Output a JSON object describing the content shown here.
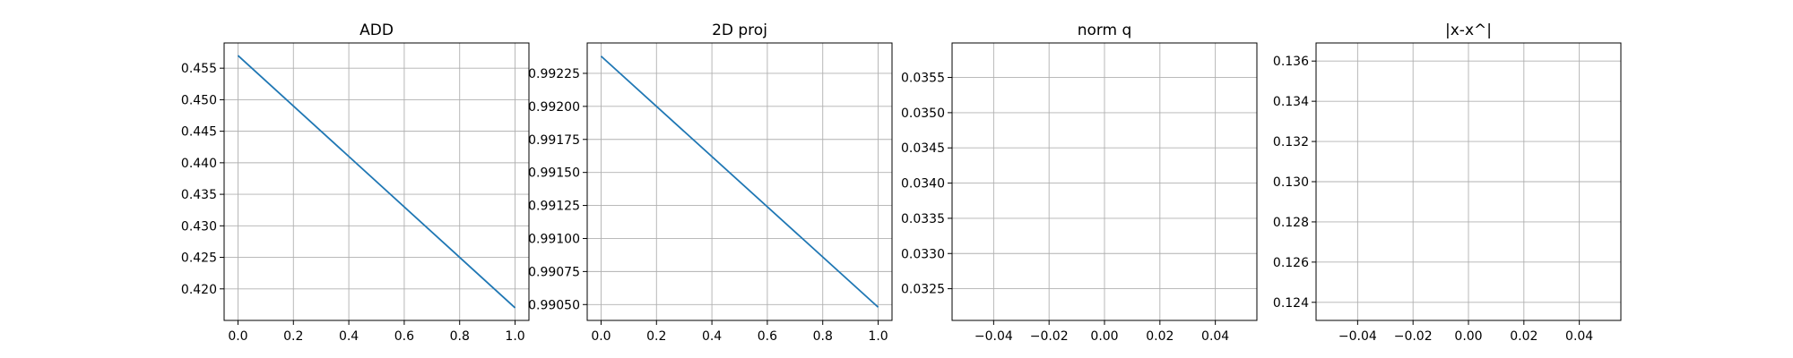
{
  "chart_data": [
    {
      "type": "line",
      "title": "ADD",
      "xlabel": "",
      "ylabel": "",
      "xlim": [
        -0.05,
        1.05
      ],
      "ylim": [
        0.415,
        0.459
      ],
      "xticks": [
        0.0,
        0.2,
        0.4,
        0.6,
        0.8,
        1.0
      ],
      "xtick_labels": [
        "0.0",
        "0.2",
        "0.4",
        "0.6",
        "0.8",
        "1.0"
      ],
      "yticks": [
        0.42,
        0.425,
        0.43,
        0.435,
        0.44,
        0.445,
        0.45,
        0.455
      ],
      "ytick_labels": [
        "0.420",
        "0.425",
        "0.430",
        "0.435",
        "0.440",
        "0.445",
        "0.450",
        "0.455"
      ],
      "grid": true,
      "color": "#1f77b4",
      "series": [
        {
          "x": [
            0.0,
            1.0
          ],
          "y": [
            0.457,
            0.417
          ]
        }
      ]
    },
    {
      "type": "line",
      "title": "2D proj",
      "xlabel": "",
      "ylabel": "",
      "xlim": [
        -0.05,
        1.05
      ],
      "ylim": [
        0.99038,
        0.99248
      ],
      "xticks": [
        0.0,
        0.2,
        0.4,
        0.6,
        0.8,
        1.0
      ],
      "xtick_labels": [
        "0.0",
        "0.2",
        "0.4",
        "0.6",
        "0.8",
        "1.0"
      ],
      "yticks": [
        0.9905,
        0.99075,
        0.991,
        0.99125,
        0.9915,
        0.99175,
        0.992,
        0.99225
      ],
      "ytick_labels": [
        "0.99050",
        "0.99075",
        "0.99100",
        "0.99125",
        "0.99150",
        "0.99175",
        "0.99200",
        "0.99225"
      ],
      "grid": true,
      "color": "#1f77b4",
      "series": [
        {
          "x": [
            0.0,
            1.0
          ],
          "y": [
            0.99238,
            0.99048
          ]
        }
      ]
    },
    {
      "type": "line",
      "title": "norm q",
      "xlabel": "",
      "ylabel": "",
      "xlim": [
        -0.055,
        0.055
      ],
      "ylim": [
        0.03205,
        0.03599
      ],
      "xticks": [
        -0.04,
        -0.02,
        0.0,
        0.02,
        0.04
      ],
      "xtick_labels": [
        "−0.04",
        "−0.02",
        "0.00",
        "0.02",
        "0.04"
      ],
      "yticks": [
        0.0325,
        0.033,
        0.0335,
        0.034,
        0.0345,
        0.035,
        0.0355
      ],
      "ytick_labels": [
        "0.0325",
        "0.0330",
        "0.0335",
        "0.0340",
        "0.0345",
        "0.0350",
        "0.0355"
      ],
      "grid": true,
      "color": "#1f77b4",
      "series": []
    },
    {
      "type": "line",
      "title": "|x-x^|",
      "xlabel": "",
      "ylabel": "",
      "xlim": [
        -0.055,
        0.055
      ],
      "ylim": [
        0.1231,
        0.1369
      ],
      "xticks": [
        -0.04,
        -0.02,
        0.0,
        0.02,
        0.04
      ],
      "xtick_labels": [
        "−0.04",
        "−0.02",
        "0.00",
        "0.02",
        "0.04"
      ],
      "yticks": [
        0.124,
        0.126,
        0.128,
        0.13,
        0.132,
        0.134,
        0.136
      ],
      "ytick_labels": [
        "0.124",
        "0.126",
        "0.128",
        "0.130",
        "0.132",
        "0.134",
        "0.136"
      ],
      "grid": true,
      "color": "#1f77b4",
      "series": []
    }
  ]
}
